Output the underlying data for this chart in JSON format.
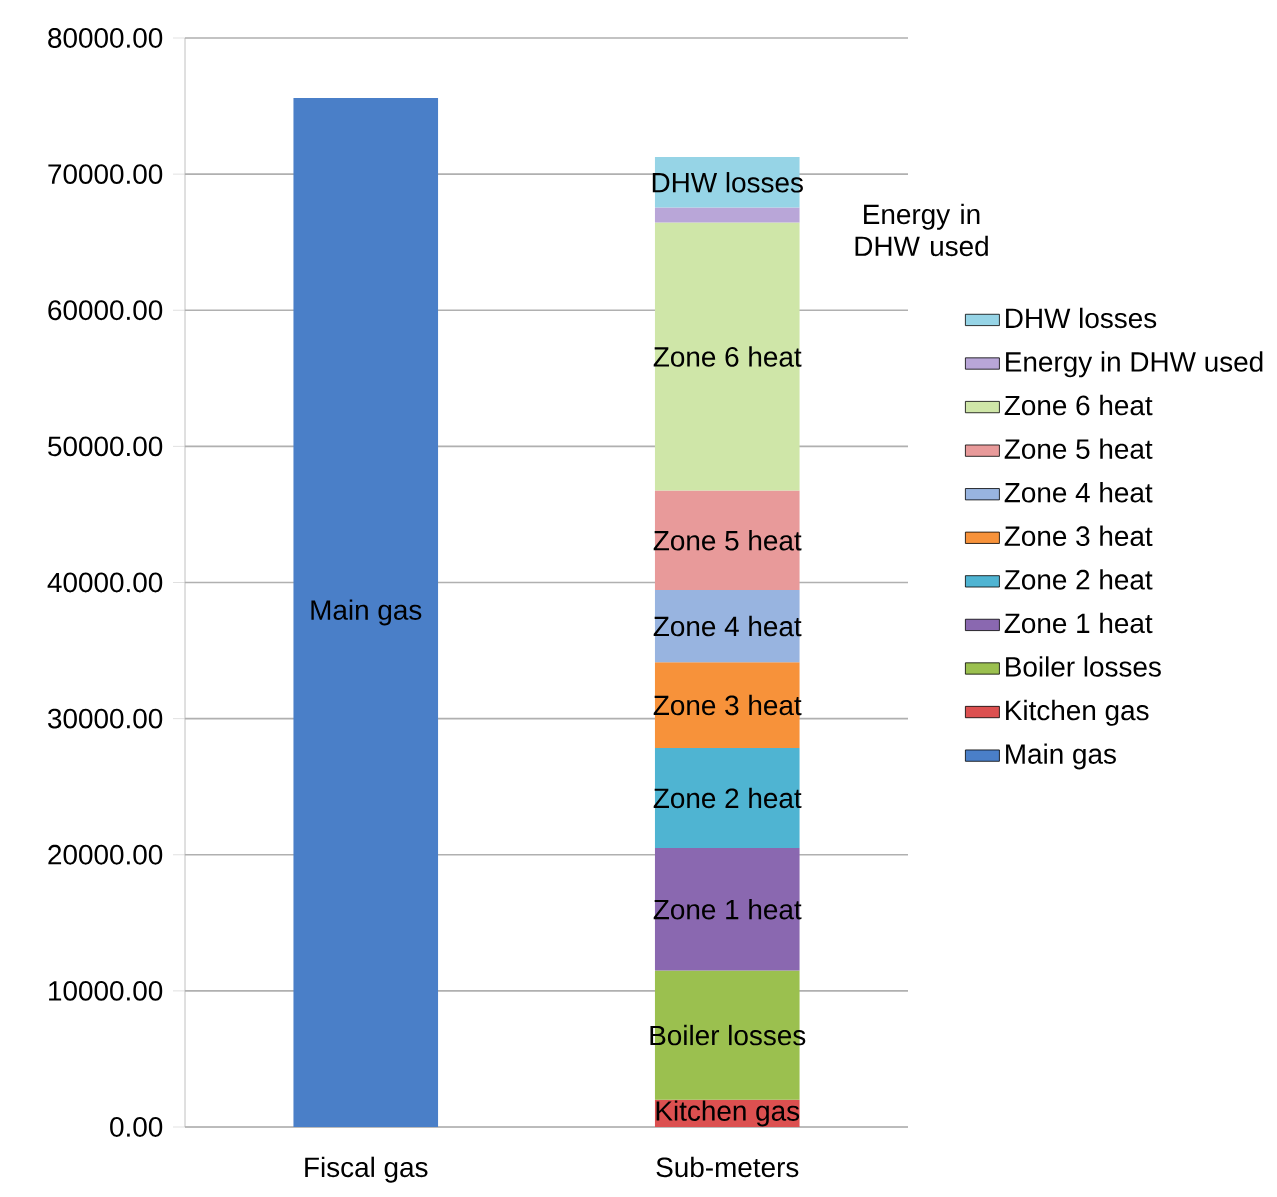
{
  "chart_data": {
    "type": "bar",
    "stacked": true,
    "categories": [
      "Fiscal gas",
      "Sub-meters"
    ],
    "series": [
      {
        "name": "Main gas",
        "color": "#4a7fc8",
        "values": [
          75600,
          null
        ]
      },
      {
        "name": "Kitchen gas",
        "color": "#dc5050",
        "values": [
          null,
          2000
        ]
      },
      {
        "name": "Boiler losses",
        "color": "#9bc04f",
        "values": [
          null,
          9500
        ]
      },
      {
        "name": "Zone 1 heat",
        "color": "#8a68b0",
        "values": [
          null,
          9000
        ]
      },
      {
        "name": "Zone 2 heat",
        "color": "#4fb4d2",
        "values": [
          null,
          7350
        ]
      },
      {
        "name": "Zone 3 heat",
        "color": "#f7923a",
        "values": [
          null,
          6300
        ]
      },
      {
        "name": "Zone 4 heat",
        "color": "#98b4e0",
        "values": [
          null,
          5300
        ]
      },
      {
        "name": "Zone 5 heat",
        "color": "#e89a9a",
        "values": [
          null,
          7300
        ]
      },
      {
        "name": "Zone 6 heat",
        "color": "#cfe6a8",
        "values": [
          null,
          19700
        ]
      },
      {
        "name": "Energy in DHW used",
        "color": "#b9a6d8",
        "values": [
          null,
          1100
        ]
      },
      {
        "name": "DHW losses",
        "color": "#96d4e6",
        "values": [
          null,
          3700
        ]
      }
    ],
    "ylim": [
      0,
      80000
    ],
    "yticks": [
      {
        "value": 0,
        "label": "0.00"
      },
      {
        "value": 10000,
        "label": "10000.00"
      },
      {
        "value": 20000,
        "label": "20000.00"
      },
      {
        "value": 30000,
        "label": "30000.00"
      },
      {
        "value": 40000,
        "label": "40000.00"
      },
      {
        "value": 50000,
        "label": "50000.00"
      },
      {
        "value": 60000,
        "label": "60000.00"
      },
      {
        "value": 70000,
        "label": "70000.00"
      },
      {
        "value": 80000,
        "label": "80000.00"
      }
    ],
    "grid": "y",
    "legend": "right"
  }
}
